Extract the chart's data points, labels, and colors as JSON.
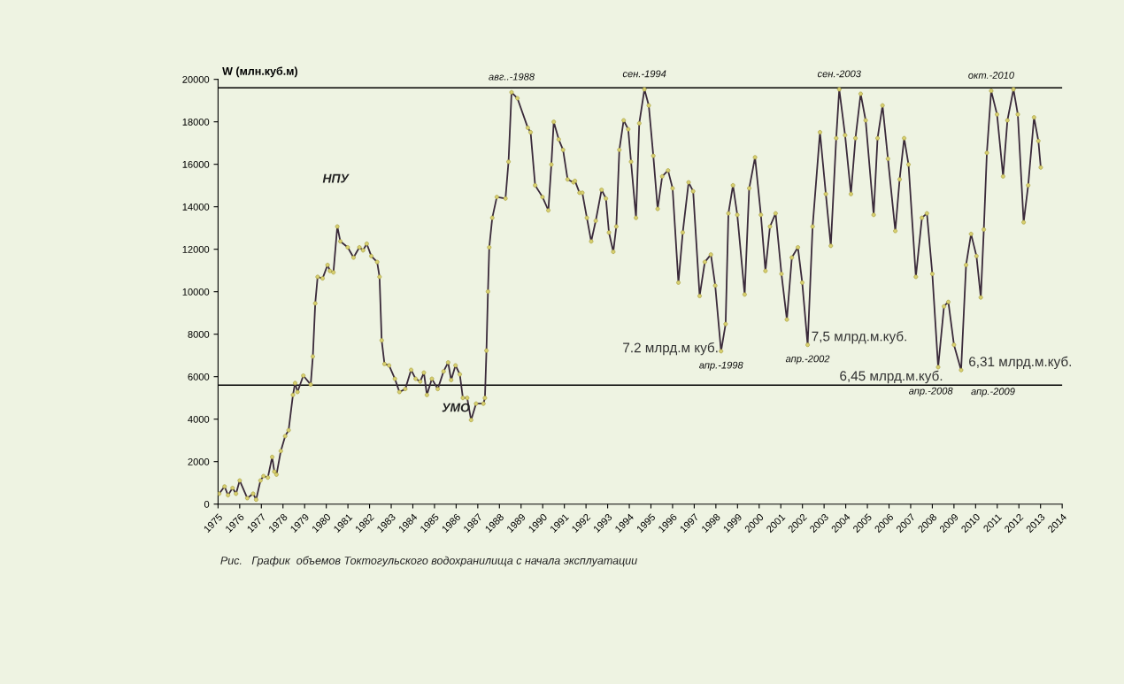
{
  "chart_data": {
    "type": "line",
    "ylabel": "W (млн.куб.м)",
    "xlim": [
      1975,
      2014
    ],
    "xticks": [
      1975,
      1976,
      1977,
      1978,
      1979,
      1980,
      1981,
      1982,
      1983,
      1984,
      1985,
      1986,
      1987,
      1988,
      1989,
      1990,
      1991,
      1992,
      1993,
      1994,
      1995,
      1996,
      1997,
      1998,
      1999,
      2000,
      2001,
      2002,
      2003,
      2004,
      2005,
      2006,
      2007,
      2008,
      2009,
      2010,
      2011,
      2012,
      2013,
      2014
    ],
    "ylim": [
      0,
      20000
    ],
    "yticks": [
      0,
      2000,
      4000,
      6000,
      8000,
      10000,
      12000,
      14000,
      16000,
      18000,
      20000
    ],
    "grid": false,
    "marker": "circle",
    "line_style": "solid",
    "series": [
      {
        "color": "#3a2a3a",
        "x": [
          1975.05,
          1975.3,
          1975.46,
          1975.67,
          1975.83,
          1976.0,
          1976.35,
          1976.62,
          1976.76,
          1976.96,
          1977.1,
          1977.3,
          1977.5,
          1977.6,
          1977.7,
          1977.9,
          1978.1,
          1978.26,
          1978.46,
          1978.56,
          1978.67,
          1978.94,
          1979.28,
          1979.38,
          1979.49,
          1979.6,
          1979.83,
          1980.06,
          1980.17,
          1980.33,
          1980.51,
          1980.65,
          1980.99,
          1981.26,
          1981.53,
          1981.7,
          1981.87,
          1982.08,
          1982.35,
          1982.46,
          1982.56,
          1982.69,
          1982.9,
          1983.17,
          1983.38,
          1983.65,
          1983.92,
          1984.13,
          1984.34,
          1984.51,
          1984.65,
          1984.88,
          1985.15,
          1985.42,
          1985.63,
          1985.77,
          1985.97,
          1986.17,
          1986.31,
          1986.51,
          1986.69,
          1986.92,
          1987.26,
          1987.33,
          1987.4,
          1987.47,
          1987.53,
          1987.67,
          1987.88,
          1988.28,
          1988.42,
          1988.56,
          1988.83,
          1989.31,
          1989.44,
          1989.65,
          1989.99,
          1990.26,
          1990.4,
          1990.51,
          1990.74,
          1990.94,
          1991.15,
          1991.42,
          1991.49,
          1991.7,
          1991.83,
          1992.04,
          1992.24,
          1992.45,
          1992.72,
          1992.92,
          1993.06,
          1993.26,
          1993.4,
          1993.54,
          1993.74,
          1993.95,
          1994.08,
          1994.31,
          1994.46,
          1994.7,
          1994.9,
          1995.11,
          1995.31,
          1995.52,
          1995.79,
          1996.0,
          1996.27,
          1996.47,
          1996.74,
          1996.95,
          1997.25,
          1997.49,
          1997.77,
          1997.97,
          1998.24,
          1998.45,
          1998.58,
          1998.79,
          1998.99,
          1999.33,
          1999.54,
          1999.81,
          2000.08,
          2000.29,
          2000.5,
          2000.76,
          2001.03,
          2001.28,
          2001.51,
          2001.79,
          2001.99,
          2002.24,
          2002.47,
          2002.81,
          2003.08,
          2003.31,
          2003.56,
          2003.7,
          2003.97,
          2004.24,
          2004.45,
          2004.69,
          2004.92,
          2005.29,
          2005.47,
          2005.7,
          2005.95,
          2006.29,
          2006.49,
          2006.7,
          2006.9,
          2007.24,
          2007.52,
          2007.75,
          2008.0,
          2008.27,
          2008.54,
          2008.74,
          2009.0,
          2009.33,
          2009.56,
          2009.79,
          2010.04,
          2010.24,
          2010.38,
          2010.52,
          2010.72,
          2010.99,
          2011.27,
          2011.47,
          2011.75,
          2011.95,
          2012.22,
          2012.43,
          2012.7,
          2012.9,
          2013.01
        ],
        "values": [
          490,
          830,
          420,
          760,
          490,
          1110,
          280,
          490,
          210,
          1110,
          1320,
          1250,
          2220,
          1530,
          1390,
          2500,
          3200,
          3480,
          5140,
          5700,
          5280,
          6050,
          5630,
          6950,
          9450,
          10700,
          10630,
          11260,
          10980,
          10910,
          13070,
          12370,
          12090,
          11610,
          12090,
          11950,
          12260,
          11680,
          11400,
          10700,
          7710,
          6600,
          6530,
          5900,
          5280,
          5420,
          6320,
          5900,
          5770,
          6190,
          5140,
          5900,
          5420,
          6250,
          6670,
          5840,
          6530,
          6110,
          5000,
          5000,
          3960,
          4730,
          4730,
          5000,
          7230,
          10010,
          12090,
          13480,
          14460,
          14390,
          16120,
          19390,
          19110,
          17720,
          17510,
          15010,
          14460,
          13830,
          15990,
          18000,
          17170,
          16680,
          15290,
          15150,
          15220,
          14660,
          14660,
          13480,
          12370,
          13340,
          14800,
          14390,
          12790,
          11880,
          13070,
          16680,
          18070,
          17650,
          16120,
          13480,
          17930,
          19530,
          18770,
          16400,
          13900,
          15430,
          15710,
          14870,
          10430,
          12790,
          15150,
          14730,
          9800,
          11400,
          11750,
          10290,
          7200,
          8480,
          13690,
          15010,
          13620,
          9870,
          14870,
          16330,
          13620,
          10980,
          13070,
          13690,
          10840,
          8690,
          11610,
          12090,
          10430,
          7500,
          13070,
          17510,
          14600,
          12160,
          17230,
          19530,
          17370,
          14600,
          17230,
          19320,
          18070,
          13620,
          17230,
          18770,
          16260,
          12860,
          15290,
          17230,
          15990,
          10700,
          13480,
          13690,
          10840,
          6450,
          9310,
          9520,
          7500,
          6310,
          11260,
          12720,
          11680,
          9730,
          12930,
          16540,
          19460,
          18350,
          15430,
          18070,
          19530,
          18350,
          13270,
          15010,
          18210,
          17100,
          15850
        ]
      }
    ],
    "ref_lines": [
      {
        "axis": "y",
        "value": 19600,
        "color": "#000000"
      },
      {
        "axis": "y",
        "value": 5600,
        "color": "#000000"
      }
    ],
    "annotations": [
      {
        "text": "авг..-1988",
        "x": 1988.56,
        "y": 19390
      },
      {
        "text": "сен.-1994",
        "x": 1994.7,
        "y": 19530
      },
      {
        "text": "сен.-2003",
        "x": 2003.7,
        "y": 19530
      },
      {
        "text": "окт.-2010",
        "x": 2010.72,
        "y": 19460
      },
      {
        "text": "7.2 млрд.м куб.",
        "x": 1998.24,
        "y": 7200
      },
      {
        "text": "апр.-1998",
        "x": 1998.24,
        "y": 7200
      },
      {
        "text": "7,5 млрд.м.куб.",
        "x": 2002.24,
        "y": 7500
      },
      {
        "text": "апр.-2002",
        "x": 2002.24,
        "y": 7500
      },
      {
        "text": "6,45 млрд.м.куб.",
        "x": 2008.27,
        "y": 6450
      },
      {
        "text": "апр.-2008",
        "x": 2008.27,
        "y": 6450
      },
      {
        "text": "6,31 млрд.м.куб.",
        "x": 2009.33,
        "y": 6310
      },
      {
        "text": "апр.-2009",
        "x": 2009.33,
        "y": 6310
      },
      "НПУ",
      "УМО",
      "Рис.   График  объемов Токтогульского водохранилища с начала эксплуатации"
    ]
  }
}
